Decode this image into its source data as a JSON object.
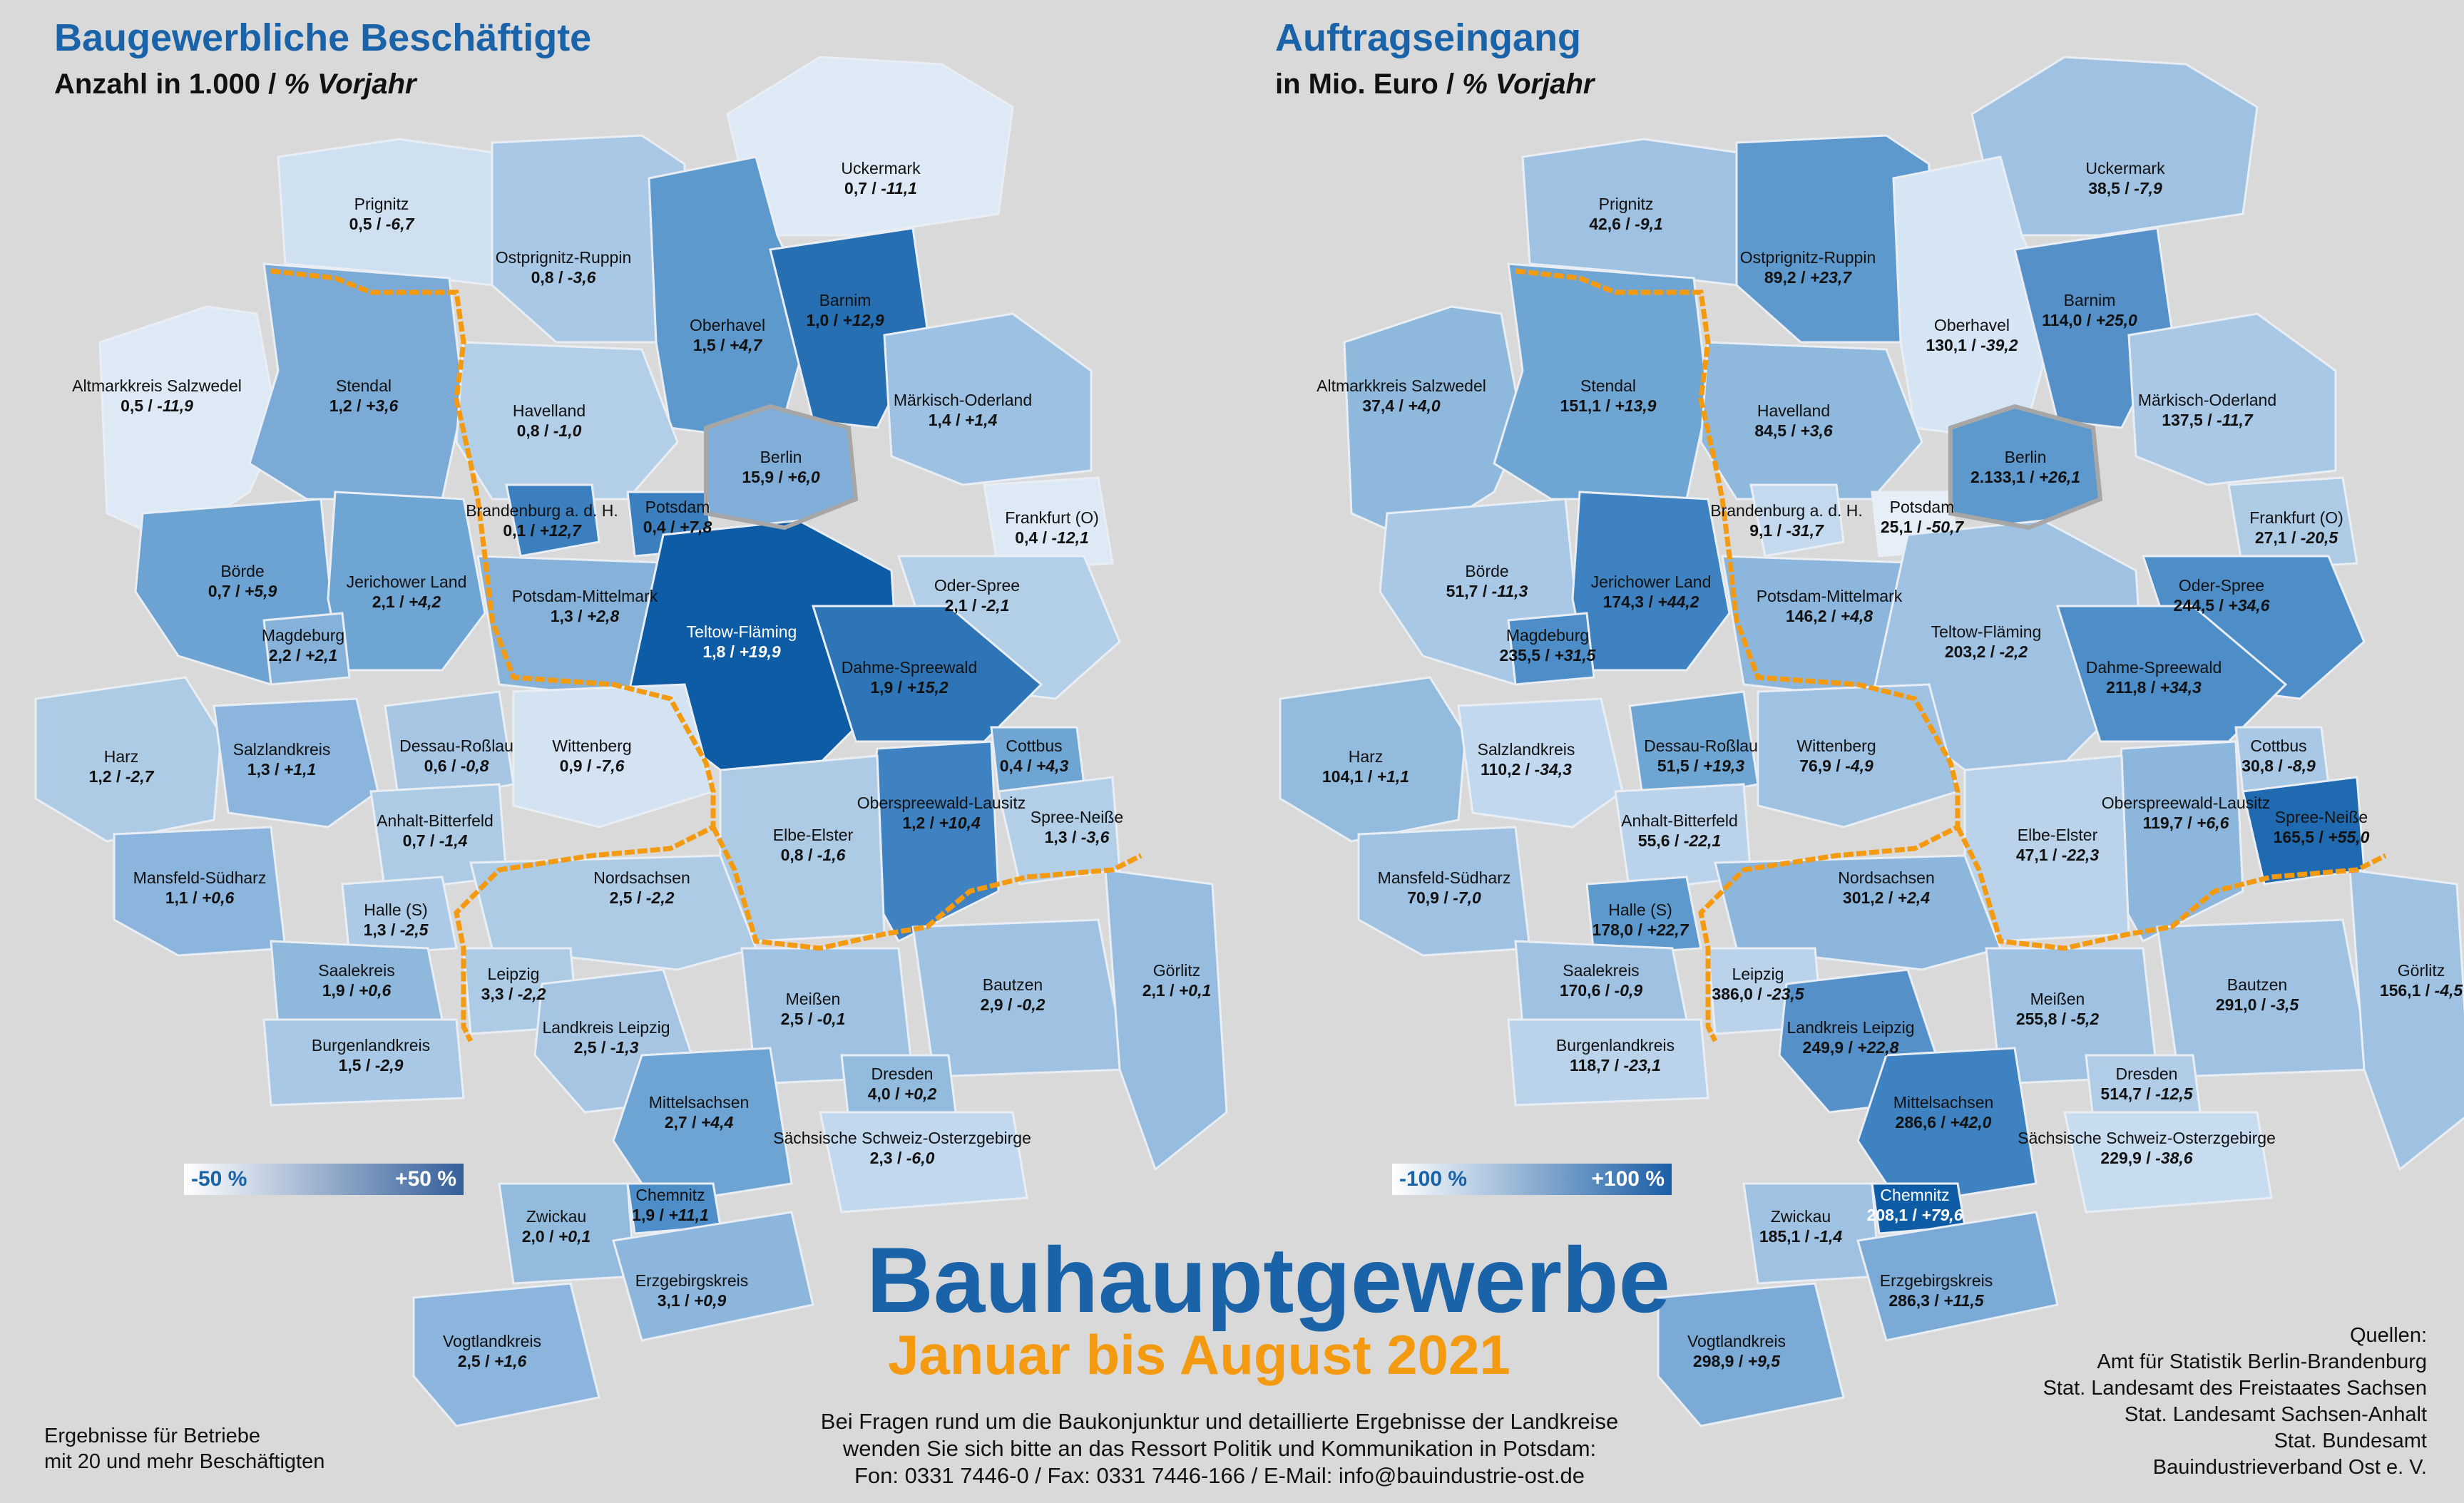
{
  "left_map": {
    "title": "Baugewerbliche Beschäftigte",
    "subtitle_plain": "Anzahl in 1.000 / ",
    "subtitle_italic": "% Vorjahr",
    "legend": {
      "min": "-50 %",
      "max": "+50 %"
    },
    "regions": [
      {
        "name": "Prignitz",
        "value": "0,5",
        "change": "-6,7"
      },
      {
        "name": "Ostprignitz-Ruppin",
        "value": "0,8",
        "change": "-3,6"
      },
      {
        "name": "Uckermark",
        "value": "0,7",
        "change": "-11,1"
      },
      {
        "name": "Oberhavel",
        "value": "1,5",
        "change": "+4,7"
      },
      {
        "name": "Barnim",
        "value": "1,0",
        "change": "+12,9"
      },
      {
        "name": "Altmarkkreis Salzwedel",
        "value": "0,5",
        "change": "-11,9"
      },
      {
        "name": "Stendal",
        "value": "1,2",
        "change": "+3,6"
      },
      {
        "name": "Havelland",
        "value": "0,8",
        "change": "-1,0"
      },
      {
        "name": "Märkisch-Oderland",
        "value": "1,4",
        "change": "+1,4"
      },
      {
        "name": "Berlin",
        "value": "15,9",
        "change": "+6,0"
      },
      {
        "name": "Brandenburg a. d. H.",
        "value": "0,1",
        "change": "+12,7"
      },
      {
        "name": "Potsdam",
        "value": "0,4",
        "change": "+7,8"
      },
      {
        "name": "Frankfurt (O)",
        "value": "0,4",
        "change": "-12,1"
      },
      {
        "name": "Börde",
        "value": "0,7",
        "change": "+5,9"
      },
      {
        "name": "Jerichower Land",
        "value": "2,1",
        "change": "+4,2"
      },
      {
        "name": "Potsdam-Mittelmark",
        "value": "1,3",
        "change": "+2,8"
      },
      {
        "name": "Teltow-Fläming",
        "value": "1,8",
        "change": "+19,9"
      },
      {
        "name": "Oder-Spree",
        "value": "2,1",
        "change": "-2,1"
      },
      {
        "name": "Magdeburg",
        "value": "2,2",
        "change": "+2,1"
      },
      {
        "name": "Dahme-Spreewald",
        "value": "1,9",
        "change": "+15,2"
      },
      {
        "name": "Harz",
        "value": "1,2",
        "change": "-2,7"
      },
      {
        "name": "Salzlandkreis",
        "value": "1,3",
        "change": "+1,1"
      },
      {
        "name": "Dessau-Roßlau",
        "value": "0,6",
        "change": "-0,8"
      },
      {
        "name": "Wittenberg",
        "value": "0,9",
        "change": "-7,6"
      },
      {
        "name": "Cottbus",
        "value": "0,4",
        "change": "+4,3"
      },
      {
        "name": "Oberspreewald-Lausitz",
        "value": "1,2",
        "change": "+10,4"
      },
      {
        "name": "Spree-Neiße",
        "value": "1,3",
        "change": "-3,6"
      },
      {
        "name": "Anhalt-Bitterfeld",
        "value": "0,7",
        "change": "-1,4"
      },
      {
        "name": "Elbe-Elster",
        "value": "0,8",
        "change": "-1,6"
      },
      {
        "name": "Mansfeld-Südharz",
        "value": "1,1",
        "change": "+0,6"
      },
      {
        "name": "Halle (S)",
        "value": "1,3",
        "change": "-2,5"
      },
      {
        "name": "Nordsachsen",
        "value": "2,5",
        "change": "-2,2"
      },
      {
        "name": "Saalekreis",
        "value": "1,9",
        "change": "+0,6"
      },
      {
        "name": "Leipzig",
        "value": "3,3",
        "change": "-2,2"
      },
      {
        "name": "Landkreis Leipzig",
        "value": "2,5",
        "change": "-1,3"
      },
      {
        "name": "Meißen",
        "value": "2,5",
        "change": "-0,1"
      },
      {
        "name": "Bautzen",
        "value": "2,9",
        "change": "-0,2"
      },
      {
        "name": "Görlitz",
        "value": "2,1",
        "change": "+0,1"
      },
      {
        "name": "Burgenlandkreis",
        "value": "1,5",
        "change": "-2,9"
      },
      {
        "name": "Dresden",
        "value": "4,0",
        "change": "+0,2"
      },
      {
        "name": "Mittelsachsen",
        "value": "2,7",
        "change": "+4,4"
      },
      {
        "name": "Sächsische Schweiz-Osterzgebirge",
        "value": "2,3",
        "change": "-6,0"
      },
      {
        "name": "Chemnitz",
        "value": "1,9",
        "change": "+11,1"
      },
      {
        "name": "Zwickau",
        "value": "2,0",
        "change": "+0,1"
      },
      {
        "name": "Erzgebirgskreis",
        "value": "3,1",
        "change": "+0,9"
      },
      {
        "name": "Vogtlandkreis",
        "value": "2,5",
        "change": "+1,6"
      }
    ]
  },
  "right_map": {
    "title": "Auftragseingang",
    "subtitle_plain": "in Mio. Euro / ",
    "subtitle_italic": "% Vorjahr",
    "legend": {
      "min": "-100 %",
      "max": "+100 %"
    },
    "regions": [
      {
        "name": "Prignitz",
        "value": "42,6",
        "change": "-9,1"
      },
      {
        "name": "Ostprignitz-Ruppin",
        "value": "89,2",
        "change": "+23,7"
      },
      {
        "name": "Uckermark",
        "value": "38,5",
        "change": "-7,9"
      },
      {
        "name": "Oberhavel",
        "value": "130,1",
        "change": "-39,2"
      },
      {
        "name": "Barnim",
        "value": "114,0",
        "change": "+25,0"
      },
      {
        "name": "Altmarkkreis Salzwedel",
        "value": "37,4",
        "change": "+4,0"
      },
      {
        "name": "Stendal",
        "value": "151,1",
        "change": "+13,9"
      },
      {
        "name": "Havelland",
        "value": "84,5",
        "change": "+3,6"
      },
      {
        "name": "Märkisch-Oderland",
        "value": "137,5",
        "change": "-11,7"
      },
      {
        "name": "Berlin",
        "value": "2.133,1",
        "change": "+26,1"
      },
      {
        "name": "Brandenburg a. d. H.",
        "value": "9,1",
        "change": "-31,7"
      },
      {
        "name": "Potsdam",
        "value": "25,1",
        "change": "-50,7"
      },
      {
        "name": "Frankfurt (O)",
        "value": "27,1",
        "change": "-20,5"
      },
      {
        "name": "Börde",
        "value": "51,7",
        "change": "-11,3"
      },
      {
        "name": "Jerichower Land",
        "value": "174,3",
        "change": "+44,2"
      },
      {
        "name": "Potsdam-Mittelmark",
        "value": "146,2",
        "change": "+4,8"
      },
      {
        "name": "Teltow-Fläming",
        "value": "203,2",
        "change": "-2,2"
      },
      {
        "name": "Oder-Spree",
        "value": "244,5",
        "change": "+34,6"
      },
      {
        "name": "Magdeburg",
        "value": "235,5",
        "change": "+31,5"
      },
      {
        "name": "Dahme-Spreewald",
        "value": "211,8",
        "change": "+34,3"
      },
      {
        "name": "Harz",
        "value": "104,1",
        "change": "+1,1"
      },
      {
        "name": "Salzlandkreis",
        "value": "110,2",
        "change": "-34,3"
      },
      {
        "name": "Dessau-Roßlau",
        "value": "51,5",
        "change": "+19,3"
      },
      {
        "name": "Wittenberg",
        "value": "76,9",
        "change": "-4,9"
      },
      {
        "name": "Cottbus",
        "value": "30,8",
        "change": "-8,9"
      },
      {
        "name": "Oberspreewald-Lausitz",
        "value": "119,7",
        "change": "+6,6"
      },
      {
        "name": "Spree-Neiße",
        "value": "165,5",
        "change": "+55,0"
      },
      {
        "name": "Anhalt-Bitterfeld",
        "value": "55,6",
        "change": "-22,1"
      },
      {
        "name": "Elbe-Elster",
        "value": "47,1",
        "change": "-22,3"
      },
      {
        "name": "Mansfeld-Südharz",
        "value": "70,9",
        "change": "-7,0"
      },
      {
        "name": "Halle (S)",
        "value": "178,0",
        "change": "+22,7"
      },
      {
        "name": "Nordsachsen",
        "value": "301,2",
        "change": "+2,4"
      },
      {
        "name": "Saalekreis",
        "value": "170,6",
        "change": "-0,9"
      },
      {
        "name": "Leipzig",
        "value": "386,0",
        "change": "-23,5"
      },
      {
        "name": "Landkreis Leipzig",
        "value": "249,9",
        "change": "+22,8"
      },
      {
        "name": "Meißen",
        "value": "255,8",
        "change": "-5,2"
      },
      {
        "name": "Bautzen",
        "value": "291,0",
        "change": "-3,5"
      },
      {
        "name": "Görlitz",
        "value": "156,1",
        "change": "-4,5"
      },
      {
        "name": "Burgenlandkreis",
        "value": "118,7",
        "change": "-23,1"
      },
      {
        "name": "Dresden",
        "value": "514,7",
        "change": "-12,5"
      },
      {
        "name": "Mittelsachsen",
        "value": "286,6",
        "change": "+42,0"
      },
      {
        "name": "Sächsische Schweiz-Osterzgebirge",
        "value": "229,9",
        "change": "-38,6"
      },
      {
        "name": "Chemnitz",
        "value": "208,1",
        "change": "+79,6"
      },
      {
        "name": "Zwickau",
        "value": "185,1",
        "change": "-1,4"
      },
      {
        "name": "Erzgebirgskreis",
        "value": "286,3",
        "change": "+11,5"
      },
      {
        "name": "Vogtlandkreis",
        "value": "298,9",
        "change": "+9,5"
      }
    ]
  },
  "headline": "Bauhauptgewerbe",
  "period": "Januar bis August 2021",
  "contact_lines": [
    "Bei Fragen rund um die Baukonjunktur und detaillierte Ergebnisse der Landkreise",
    "wenden Sie sich bitte an das Ressort Politik und Kommunikation in Potsdam:",
    "Fon: 0331 7446-0 / Fax: 0331 7446-166 / E-Mail: info@bauindustrie-ost.de"
  ],
  "note_lines": [
    "Ergebnisse für Betriebe",
    "mit 20 und mehr Beschäftigten"
  ],
  "sources": {
    "heading": "Quellen:",
    "items": [
      "Amt für Statistik Berlin-Brandenburg",
      "Stat. Landesamt des Freistaates Sachsen",
      "Stat. Landesamt Sachsen-Anhalt",
      "Stat. Bundesamt",
      "Bauindustrieverband Ost e. V."
    ]
  },
  "colors": {
    "background": "#d9d9d9",
    "title_blue": "#1a63a8",
    "period_orange": "#f39a10",
    "state_border": "#f39a10",
    "berlin_border": "#a6a6a6"
  }
}
